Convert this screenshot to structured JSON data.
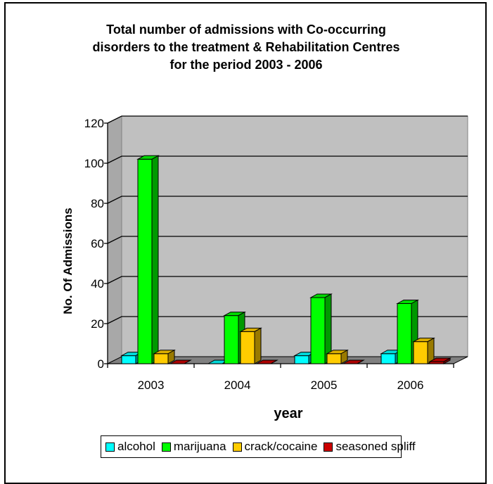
{
  "chart_data": {
    "type": "bar",
    "title_lines": [
      "Total number of admissions with Co-occurring",
      "disorders to the treatment & Rehabilitation Centres",
      "for the period 2003 - 2006"
    ],
    "xlabel": "year",
    "ylabel": "No. Of Admissions",
    "categories": [
      "2003",
      "2004",
      "2005",
      "2006"
    ],
    "ylim": [
      0,
      120
    ],
    "yticks": [
      0,
      20,
      40,
      60,
      80,
      100,
      120
    ],
    "grid": true,
    "legend_position": "bottom",
    "series": [
      {
        "name": "alcohol",
        "color": "#00ffff",
        "values": [
          4,
          0,
          4,
          5
        ]
      },
      {
        "name": "marijuana",
        "color": "#00ff00",
        "values": [
          102,
          24,
          33,
          30
        ]
      },
      {
        "name": "crack/cocaine",
        "color": "#ffcc00",
        "values": [
          5,
          16,
          5,
          11
        ]
      },
      {
        "name": "seasoned spliff",
        "color": "#cc0000",
        "values": [
          0,
          0,
          0,
          1
        ]
      }
    ]
  }
}
